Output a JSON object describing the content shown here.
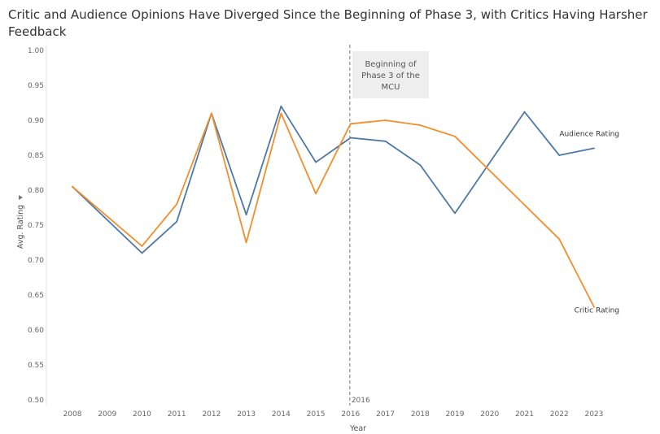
{
  "title": "Critic and Audience Opinions Have Diverged Since the Beginning of Phase 3, with Critics Having Harsher Feedback",
  "chart_data": {
    "type": "line",
    "title": "Critic and Audience Opinions Have Diverged Since the Beginning of Phase 3, with Critics Having Harsher Feedback",
    "xlabel": "Year",
    "ylabel": "Avg. Rating",
    "ylabel_icon": "sort-descending-icon",
    "ylim": [
      0.5,
      1.0
    ],
    "yticks": [
      "1.00",
      "0.95",
      "0.90",
      "0.85",
      "0.80",
      "0.75",
      "0.70",
      "0.65",
      "0.60",
      "0.55",
      "0.50"
    ],
    "categories": [
      "2008",
      "2009",
      "2010",
      "2011",
      "2012",
      "2013",
      "2014",
      "2015",
      "2016",
      "2017",
      "2018",
      "2019",
      "2020",
      "2021",
      "2022",
      "2023"
    ],
    "grid": false,
    "series": [
      {
        "name": "Audience Rating",
        "color": "#4e79a7",
        "values": [
          0.805,
          null,
          0.71,
          0.755,
          0.91,
          0.765,
          0.92,
          0.84,
          0.875,
          0.87,
          0.836,
          0.767,
          null,
          0.912,
          0.85,
          0.86
        ]
      },
      {
        "name": "Critic Rating",
        "color": "#f28e2b",
        "values": [
          0.805,
          null,
          0.72,
          0.78,
          0.91,
          0.725,
          0.91,
          0.795,
          0.895,
          0.9,
          0.893,
          0.877,
          null,
          null,
          0.73,
          0.633
        ]
      }
    ],
    "reference_line": {
      "x": "2016",
      "label": "2016",
      "style": "dashed",
      "color": "#777777"
    },
    "annotation": {
      "lines": [
        "Beginning of",
        "Phase 3 of the",
        "MCU"
      ],
      "fill": "#eeeeee"
    }
  }
}
